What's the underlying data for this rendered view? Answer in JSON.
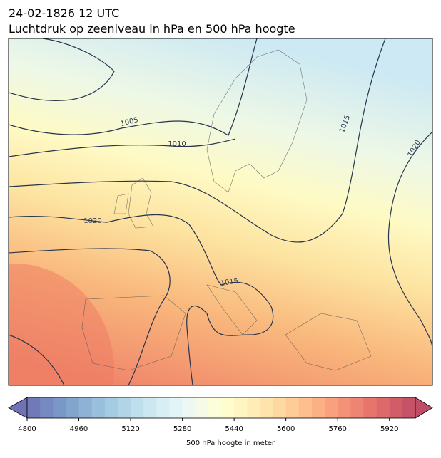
{
  "header": {
    "date": "24-02-1826 12 UTC",
    "title": "Luchtdruk op zeeniveau in hPa en 500 hPa hoogte"
  },
  "map": {
    "contour_labels": [
      "1005",
      "1010",
      "1015",
      "1015",
      "1020",
      "1020"
    ]
  },
  "colorbar": {
    "label": "500 hPa hoogte in meter",
    "vlim": [
      4800,
      6000
    ],
    "ticks": [
      4800,
      4960,
      5120,
      5280,
      5440,
      5600,
      5760,
      5920
    ]
  }
}
